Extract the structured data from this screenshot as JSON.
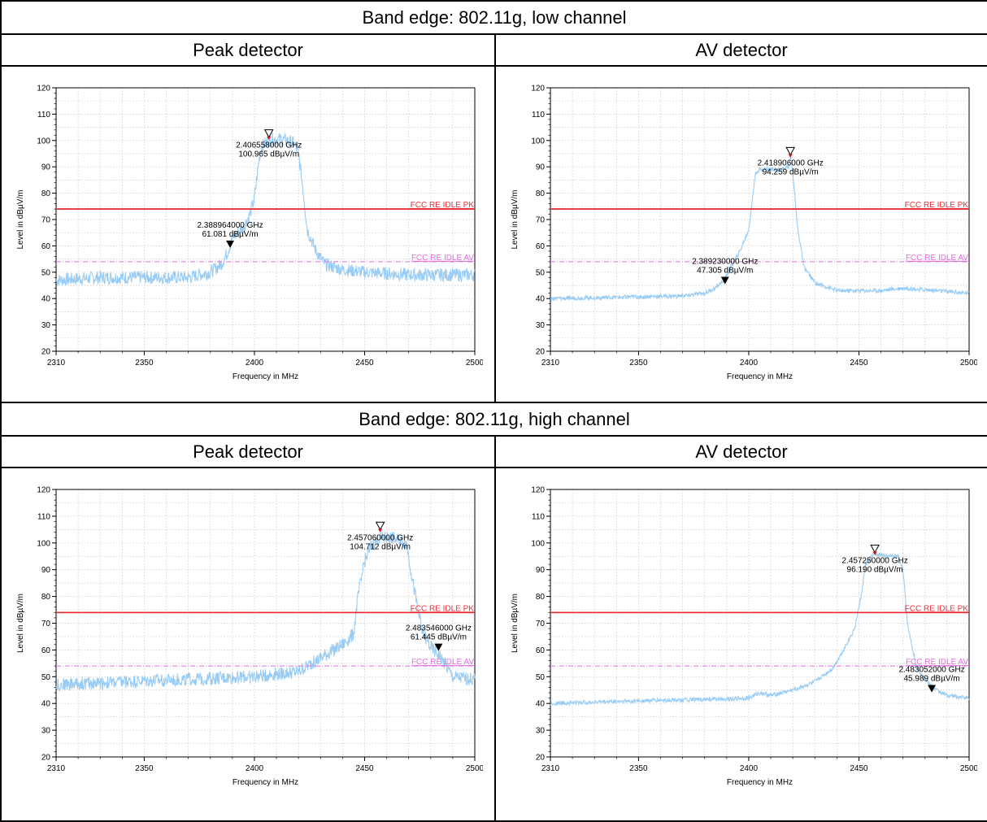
{
  "sections": [
    {
      "title": "Band edge: 802.11g, low channel",
      "peak_header": "Peak detector",
      "av_header": "AV detector"
    },
    {
      "title": "Band edge: 802.11g, high channel",
      "peak_header": "Peak detector",
      "av_header": "AV detector"
    }
  ],
  "colors": {
    "trace": "#99ccf5",
    "limit_pk": "#e8323a",
    "limit_av": "#e06ee0",
    "grid": "#c8c8c8",
    "marker_red": "#d01010"
  },
  "chart_data": [
    {
      "id": "low-peak",
      "type": "line",
      "xlabel": "Frequency in MHz",
      "ylabel": "Level in dBµV/m",
      "xlim": [
        2310,
        2500
      ],
      "ylim": [
        20,
        120
      ],
      "xticks": [
        2310,
        2350,
        2400,
        2450,
        2500
      ],
      "yticks": [
        20,
        30,
        40,
        50,
        60,
        70,
        80,
        90,
        100,
        110,
        120
      ],
      "grid": true,
      "limits": [
        {
          "name": "FCC RE IDLE PK",
          "value": 74,
          "style": "solid"
        },
        {
          "name": "FCC RE IDLE AV",
          "value": 54,
          "style": "dashed"
        }
      ],
      "trace": {
        "x": [
          2310,
          2330,
          2350,
          2370,
          2380,
          2385,
          2388,
          2390,
          2395,
          2398,
          2400,
          2402,
          2403,
          2405,
          2408,
          2412,
          2415,
          2418,
          2420,
          2422,
          2424,
          2428,
          2432,
          2440,
          2450,
          2470,
          2500
        ],
        "y": [
          47,
          48,
          48,
          48,
          50,
          53,
          58,
          63,
          67,
          72,
          78,
          92,
          97,
          99,
          100.5,
          100.5,
          100,
          99,
          95,
          82,
          66,
          58,
          53,
          51,
          50,
          49,
          49
        ],
        "noise": 2.5
      },
      "markers": [
        {
          "freq": "2.406558000 GHz",
          "level": "100.965 dBµV/m",
          "x": 2406.558,
          "y": 100.965,
          "style": "open"
        },
        {
          "freq": "2.388964000 GHz",
          "level": "61.081 dBµV/m",
          "x": 2388.964,
          "y": 61.081,
          "style": "filled"
        }
      ]
    },
    {
      "id": "low-av",
      "type": "line",
      "xlabel": "Frequency in MHz",
      "ylabel": "Level in dBµV/m",
      "xlim": [
        2310,
        2500
      ],
      "ylim": [
        20,
        120
      ],
      "xticks": [
        2310,
        2350,
        2400,
        2450,
        2500
      ],
      "yticks": [
        20,
        30,
        40,
        50,
        60,
        70,
        80,
        90,
        100,
        110,
        120
      ],
      "grid": true,
      "limits": [
        {
          "name": "FCC RE IDLE PK",
          "value": 74,
          "style": "solid"
        },
        {
          "name": "FCC RE IDLE AV",
          "value": 54,
          "style": "dashed"
        }
      ],
      "trace": {
        "x": [
          2310,
          2340,
          2370,
          2380,
          2385,
          2389,
          2392,
          2396,
          2400,
          2402,
          2403,
          2405,
          2410,
          2415,
          2418,
          2419,
          2420,
          2422,
          2425,
          2430,
          2440,
          2460,
          2470,
          2500
        ],
        "y": [
          40,
          40.5,
          41,
          42,
          44,
          47.3,
          52,
          58,
          66,
          80,
          88,
          89,
          89,
          89,
          90,
          94,
          88,
          68,
          52,
          46,
          43,
          43,
          44,
          42
        ],
        "noise": 0.8
      },
      "markers": [
        {
          "freq": "2.418906000 GHz",
          "level": "94.259 dBµV/m",
          "x": 2418.906,
          "y": 94.259,
          "style": "open"
        },
        {
          "freq": "2.389230000 GHz",
          "level": "47.305 dBµV/m",
          "x": 2389.23,
          "y": 47.305,
          "style": "filled"
        }
      ]
    },
    {
      "id": "high-peak",
      "type": "line",
      "xlabel": "Frequency in MHz",
      "ylabel": "Level in dBµV/m",
      "xlim": [
        2310,
        2500
      ],
      "ylim": [
        20,
        120
      ],
      "xticks": [
        2310,
        2350,
        2400,
        2450,
        2500
      ],
      "yticks": [
        20,
        30,
        40,
        50,
        60,
        70,
        80,
        90,
        100,
        110,
        120
      ],
      "grid": true,
      "limits": [
        {
          "name": "FCC RE IDLE PK",
          "value": 74,
          "style": "solid"
        },
        {
          "name": "FCC RE IDLE AV",
          "value": 54,
          "style": "dashed"
        }
      ],
      "trace": {
        "x": [
          2310,
          2340,
          2370,
          2400,
          2420,
          2430,
          2440,
          2445,
          2447,
          2450,
          2453,
          2457,
          2462,
          2466,
          2469,
          2472,
          2476,
          2480,
          2484,
          2490,
          2500
        ],
        "y": [
          47,
          48,
          49,
          50,
          52,
          57,
          62,
          66,
          80,
          93,
          99,
          102,
          102,
          101,
          100,
          85,
          67,
          61,
          58,
          50,
          49
        ],
        "noise": 2.5
      },
      "markers": [
        {
          "freq": "2.457060000 GHz",
          "level": "104.712 dBµV/m",
          "x": 2457.06,
          "y": 104.712,
          "style": "open"
        },
        {
          "freq": "2.483546000 GHz",
          "level": "61.445 dBµV/m",
          "x": 2483.546,
          "y": 61.445,
          "style": "filled"
        }
      ]
    },
    {
      "id": "high-av",
      "type": "line",
      "xlabel": "Frequency in MHz",
      "ylabel": "Level in dBµV/m",
      "xlim": [
        2310,
        2500
      ],
      "ylim": [
        20,
        120
      ],
      "xticks": [
        2310,
        2350,
        2400,
        2450,
        2500
      ],
      "yticks": [
        20,
        30,
        40,
        50,
        60,
        70,
        80,
        90,
        100,
        110,
        120
      ],
      "grid": true,
      "limits": [
        {
          "name": "FCC RE IDLE PK",
          "value": 74,
          "style": "solid"
        },
        {
          "name": "FCC RE IDLE AV",
          "value": 54,
          "style": "dashed"
        }
      ],
      "trace": {
        "x": [
          2310,
          2350,
          2380,
          2400,
          2405,
          2410,
          2420,
          2430,
          2438,
          2443,
          2448,
          2451,
          2453,
          2457,
          2462,
          2468,
          2470,
          2472,
          2476,
          2480,
          2485,
          2490,
          2500
        ],
        "y": [
          40,
          41,
          41.5,
          42,
          44,
          43,
          45,
          48,
          53,
          60,
          68,
          80,
          92,
          96,
          95,
          95,
          90,
          70,
          54,
          49,
          45,
          43,
          42
        ],
        "noise": 0.8
      },
      "markers": [
        {
          "freq": "2.457250000 GHz",
          "level": "96.190 dBµV/m",
          "x": 2457.25,
          "y": 96.19,
          "style": "open"
        },
        {
          "freq": "2.483052000 GHz",
          "level": "45.989 dBµV/m",
          "x": 2483.052,
          "y": 45.989,
          "style": "filled"
        }
      ]
    }
  ]
}
